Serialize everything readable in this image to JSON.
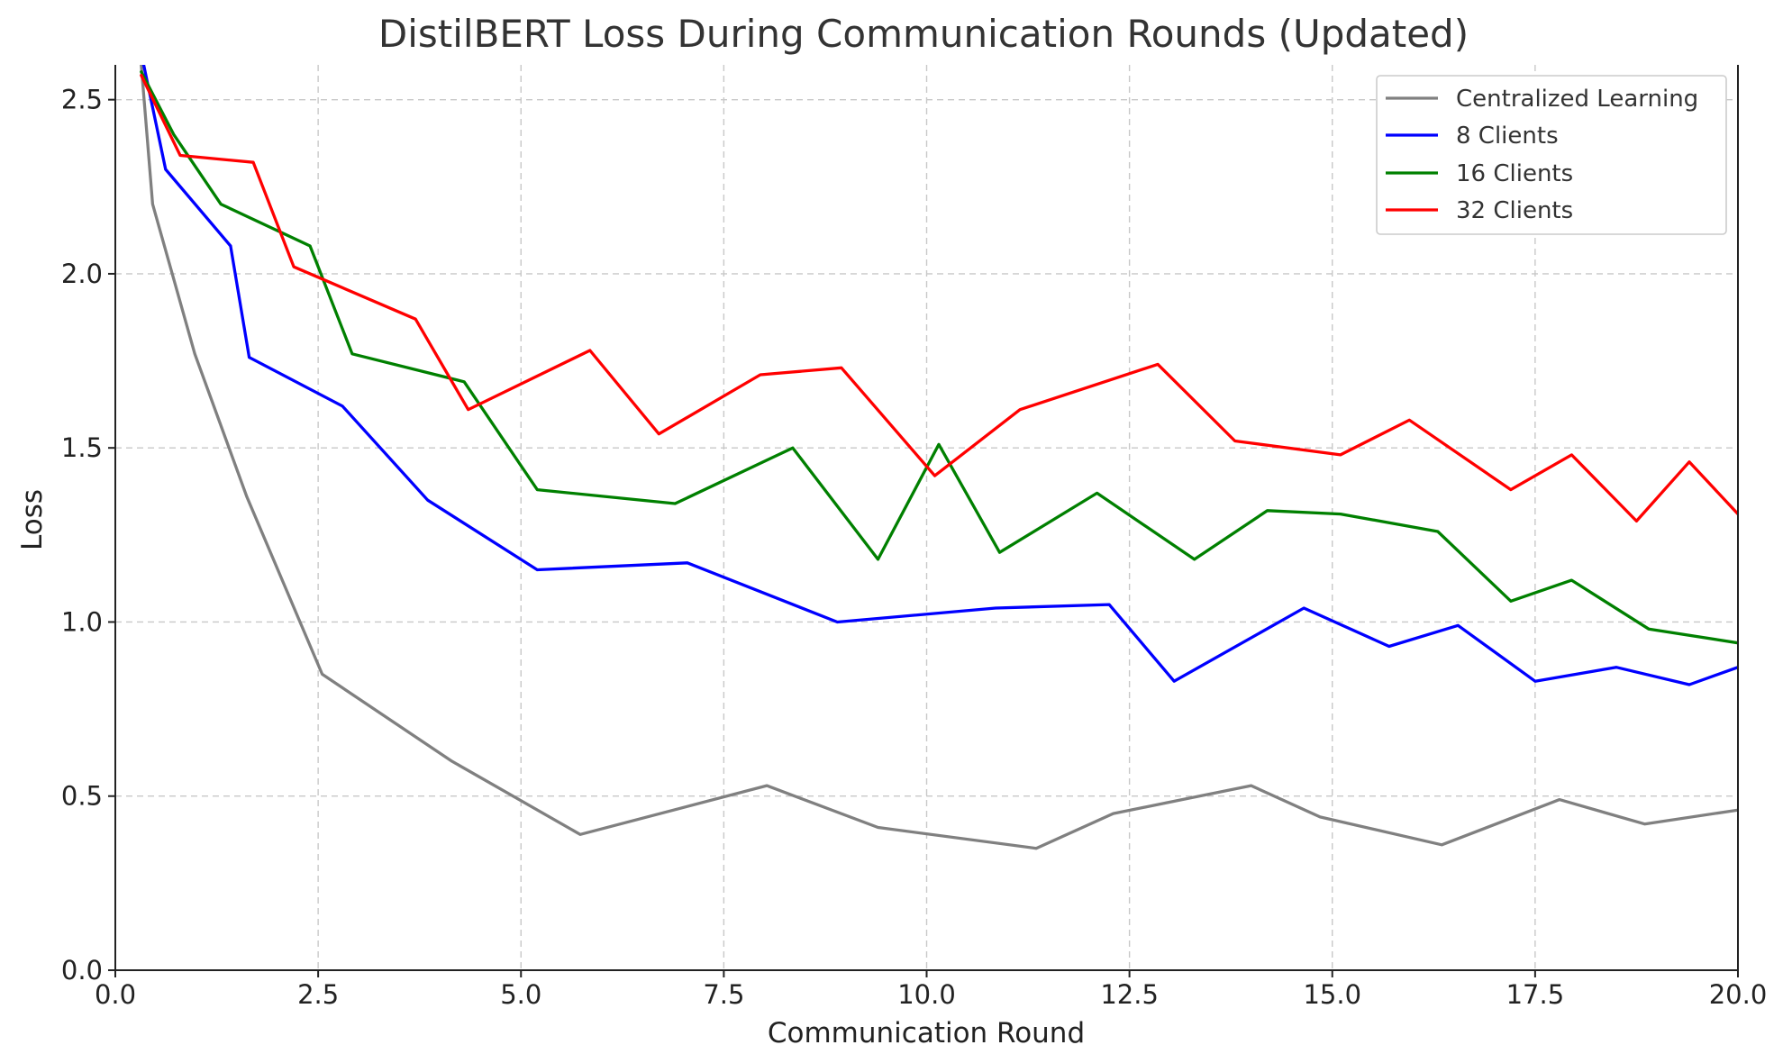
{
  "chart_data": {
    "type": "line",
    "title": "DistilBERT Loss During Communication Rounds (Updated)",
    "xlabel": "Communication Round",
    "ylabel": "Loss",
    "xlim": [
      0,
      20
    ],
    "ylim": [
      0,
      2.6
    ],
    "xticks": [
      0,
      2.5,
      5,
      7.5,
      10,
      12.5,
      15,
      17.5,
      20
    ],
    "xtick_labels": [
      "0.0",
      "2.5",
      "5.0",
      "7.5",
      "10.0",
      "12.5",
      "15.0",
      "17.5",
      "20.0"
    ],
    "yticks": [
      0,
      0.5,
      1,
      1.5,
      2,
      2.5
    ],
    "ytick_labels": [
      "0.0",
      "0.5",
      "1.0",
      "1.5",
      "2.0",
      "2.5"
    ],
    "grid": true,
    "legend_position": "top-right",
    "series": [
      {
        "name": "Centralized Learning",
        "color": "#808080",
        "x": [
          0.32,
          0.46,
          0.98,
          1.62,
          2.55,
          4.15,
          5.73,
          8.03,
          9.4,
          11.35,
          12.3,
          14.0,
          14.85,
          16.35,
          17.8,
          18.85,
          20.0
        ],
        "y": [
          2.6,
          2.2,
          1.77,
          1.36,
          0.85,
          0.6,
          0.39,
          0.53,
          0.41,
          0.35,
          0.45,
          0.53,
          0.44,
          0.36,
          0.49,
          0.42,
          0.46
        ]
      },
      {
        "name": "8 Clients",
        "color": "#0000ff",
        "x": [
          0.35,
          0.62,
          1.42,
          1.65,
          2.8,
          3.85,
          5.2,
          7.05,
          8.9,
          10.85,
          12.25,
          13.05,
          14.65,
          15.7,
          16.55,
          17.5,
          18.5,
          19.4,
          20.0
        ],
        "y": [
          2.6,
          2.3,
          2.08,
          1.76,
          1.62,
          1.35,
          1.15,
          1.17,
          1.0,
          1.04,
          1.05,
          0.83,
          1.04,
          0.93,
          0.99,
          0.83,
          0.87,
          0.82,
          0.87
        ]
      },
      {
        "name": "16 Clients",
        "color": "#008000",
        "x": [
          0.32,
          0.72,
          1.3,
          2.4,
          2.92,
          4.3,
          5.2,
          6.9,
          8.35,
          9.4,
          10.15,
          10.9,
          12.1,
          13.3,
          14.2,
          15.1,
          16.3,
          17.2,
          17.95,
          18.9,
          20.0
        ],
        "y": [
          2.58,
          2.4,
          2.2,
          2.08,
          1.77,
          1.69,
          1.38,
          1.34,
          1.5,
          1.18,
          1.51,
          1.2,
          1.37,
          1.18,
          1.32,
          1.31,
          1.26,
          1.06,
          1.12,
          0.98,
          0.94
        ]
      },
      {
        "name": "32 Clients",
        "color": "#ff0000",
        "x": [
          0.32,
          0.8,
          1.7,
          2.2,
          3.7,
          4.35,
          5.85,
          6.7,
          7.95,
          8.95,
          10.1,
          11.15,
          12.85,
          13.8,
          15.1,
          15.95,
          17.2,
          17.95,
          18.75,
          19.4,
          20.0
        ],
        "y": [
          2.57,
          2.34,
          2.32,
          2.02,
          1.87,
          1.61,
          1.78,
          1.54,
          1.71,
          1.73,
          1.42,
          1.61,
          1.74,
          1.52,
          1.48,
          1.58,
          1.38,
          1.48,
          1.29,
          1.46,
          1.31
        ]
      }
    ]
  }
}
